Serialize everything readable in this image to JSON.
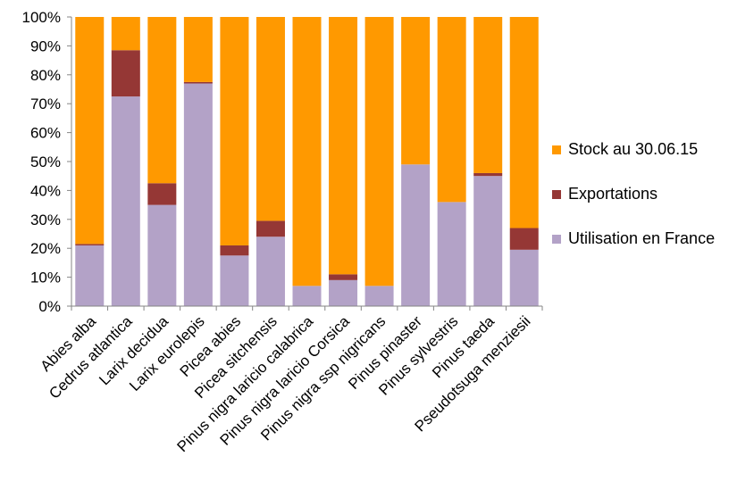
{
  "chart_data": {
    "type": "bar",
    "stacked": true,
    "categories": [
      "Abies alba",
      "Cedrus atlantica",
      "Larix decidua",
      "Larix eurolepis",
      "Picea abies",
      "Picea sitchensis",
      "Pinus nigra laricio calabrica",
      "Pinus nigra laricio Corsica",
      "Pinus nigra ssp nigricans",
      "Pinus pinaster",
      "Pinus sylvestris",
      "Pinus taeda",
      "Pseudotsuga menziesii"
    ],
    "series": [
      {
        "name": "Utilisation en France",
        "color": "#b3a2c7",
        "values": [
          21,
          72.5,
          35,
          77,
          17.5,
          24,
          7,
          9,
          7,
          49,
          36,
          45,
          19.5
        ]
      },
      {
        "name": "Exportations",
        "color": "#953735",
        "values": [
          0.5,
          16,
          7.5,
          0.5,
          3.5,
          5.5,
          0,
          2,
          0,
          0,
          0,
          1,
          7.5
        ]
      },
      {
        "name": "Stock au 30.06.15",
        "color": "#ff9900",
        "values": [
          78.5,
          11.5,
          57.5,
          22.5,
          79,
          70.5,
          93,
          89,
          93,
          51,
          64,
          54,
          73
        ]
      }
    ],
    "ylim": [
      0,
      100
    ],
    "yticks": [
      "0%",
      "10%",
      "20%",
      "30%",
      "40%",
      "50%",
      "60%",
      "70%",
      "80%",
      "90%",
      "100%"
    ],
    "grid": false,
    "legend": {
      "placement": "right",
      "order": [
        "Stock au 30.06.15",
        "Exportations",
        "Utilisation en France"
      ]
    },
    "axis_color": "#868686"
  }
}
